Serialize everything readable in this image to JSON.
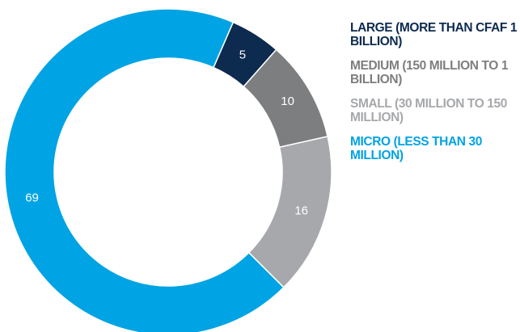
{
  "chart_data": {
    "type": "pie",
    "categories": [
      "LARGE (MORE THAN CFAF 1 BILLION)",
      "MEDIUM (150 MILLION TO 1 BILLION)",
      "SMALL (30 MILLION TO 150 MILLION)",
      "MICRO (LESS THAN 30 MILLION)"
    ],
    "values": [
      5,
      10,
      16,
      69
    ],
    "colors": [
      "#0d2a4f",
      "#7d7e80",
      "#a6a8ab",
      "#00a3e3"
    ],
    "donut": true,
    "legend": {
      "position": "right",
      "items": [
        {
          "label": "LARGE (MORE THAN CFAF 1 BILLION)",
          "color": "#0d2a4f"
        },
        {
          "label": "MEDIUM (150 MILLION TO 1 BILLION)",
          "color": "#7d7e80"
        },
        {
          "label": "SMALL (30 MILLION TO 150 MILLION)",
          "color": "#a6a8ab"
        },
        {
          "label": "MICRO (LESS THAN 30 MILLION)",
          "color": "#00a3e3"
        }
      ]
    }
  }
}
